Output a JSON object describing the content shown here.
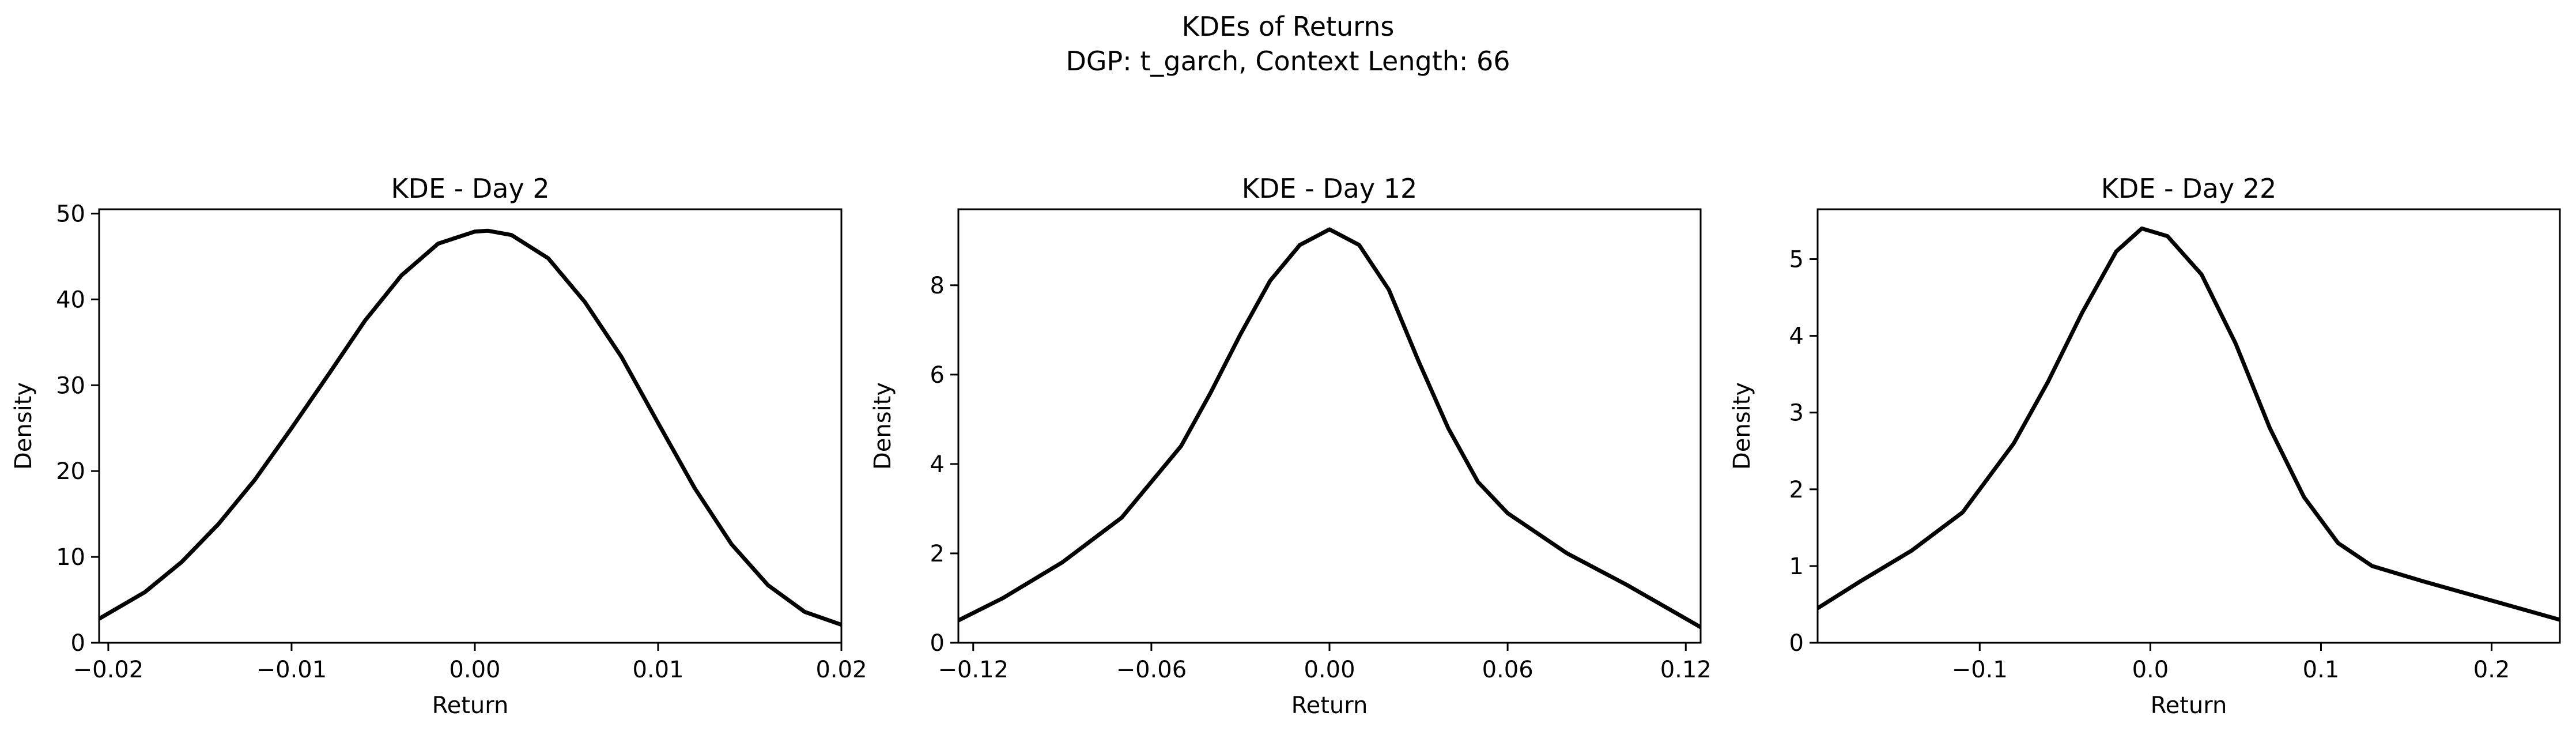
{
  "figure": {
    "suptitle_line1": "KDEs of Returns",
    "suptitle_line2": "DGP: t_garch, Context Length: 66"
  },
  "colors": {
    "line": "#000000",
    "axes": "#000000",
    "background": "#ffffff"
  },
  "chart_data": [
    {
      "type": "line",
      "title": "KDE - Day 2",
      "xlabel": "Return",
      "ylabel": "Density",
      "xlim": [
        -0.0205,
        0.02
      ],
      "ylim": [
        0,
        50.5
      ],
      "xticks": [
        -0.02,
        -0.01,
        0.0,
        0.01,
        0.02
      ],
      "xtick_labels": [
        "−0.02",
        "−0.01",
        "0.00",
        "0.01",
        "0.02"
      ],
      "yticks": [
        0,
        10,
        20,
        30,
        40,
        50
      ],
      "ytick_labels": [
        "0",
        "10",
        "20",
        "30",
        "40",
        "50"
      ],
      "grid": false,
      "series": [
        {
          "x": [
            -0.0205,
            -0.018,
            -0.016,
            -0.014,
            -0.012,
            -0.01,
            -0.008,
            -0.006,
            -0.004,
            -0.002,
            0.0,
            0.0007,
            0.002,
            0.004,
            0.006,
            0.008,
            0.01,
            0.012,
            0.014,
            0.016,
            0.018,
            0.02
          ],
          "y": [
            2.8,
            5.9,
            9.4,
            13.8,
            19.0,
            25.0,
            31.2,
            37.5,
            42.8,
            46.5,
            47.9,
            48.0,
            47.5,
            44.8,
            39.7,
            33.3,
            25.6,
            18.0,
            11.5,
            6.7,
            3.6,
            2.1
          ]
        }
      ]
    },
    {
      "type": "line",
      "title": "KDE - Day 12",
      "xlabel": "Return",
      "ylabel": "Density",
      "xlim": [
        -0.125,
        0.125
      ],
      "ylim": [
        0,
        9.7
      ],
      "xticks": [
        -0.12,
        -0.06,
        0.0,
        0.06,
        0.12
      ],
      "xtick_labels": [
        "−0.12",
        "−0.06",
        "0.00",
        "0.06",
        "0.12"
      ],
      "yticks": [
        0,
        2,
        4,
        6,
        8
      ],
      "ytick_labels": [
        "0",
        "2",
        "4",
        "6",
        "8"
      ],
      "grid": false,
      "series": [
        {
          "x": [
            -0.125,
            -0.11,
            -0.09,
            -0.07,
            -0.05,
            -0.04,
            -0.03,
            -0.02,
            -0.01,
            0.0,
            0.01,
            0.02,
            0.03,
            0.04,
            0.05,
            0.06,
            0.08,
            0.1,
            0.125
          ],
          "y": [
            0.5,
            1.0,
            1.8,
            2.8,
            4.4,
            5.6,
            6.9,
            8.1,
            8.9,
            9.25,
            8.9,
            7.9,
            6.3,
            4.8,
            3.6,
            2.9,
            2.0,
            1.3,
            0.35
          ]
        }
      ]
    },
    {
      "type": "line",
      "title": "KDE - Day 22",
      "xlabel": "Return",
      "ylabel": "Density",
      "xlim": [
        -0.195,
        0.24
      ],
      "ylim": [
        0,
        5.65
      ],
      "xticks": [
        -0.1,
        0.0,
        0.1,
        0.2
      ],
      "xtick_labels": [
        "−0.1",
        "0.0",
        "0.1",
        "0.2"
      ],
      "yticks": [
        0,
        1,
        2,
        3,
        4,
        5
      ],
      "ytick_labels": [
        "0",
        "1",
        "2",
        "3",
        "4",
        "5"
      ],
      "grid": false,
      "series": [
        {
          "x": [
            -0.195,
            -0.17,
            -0.14,
            -0.11,
            -0.08,
            -0.06,
            -0.04,
            -0.02,
            -0.005,
            0.01,
            0.03,
            0.05,
            0.07,
            0.09,
            0.11,
            0.13,
            0.16,
            0.2,
            0.24
          ],
          "y": [
            0.45,
            0.8,
            1.2,
            1.7,
            2.6,
            3.4,
            4.3,
            5.1,
            5.4,
            5.3,
            4.8,
            3.9,
            2.8,
            1.9,
            1.3,
            1.0,
            0.8,
            0.55,
            0.3
          ]
        }
      ]
    }
  ]
}
